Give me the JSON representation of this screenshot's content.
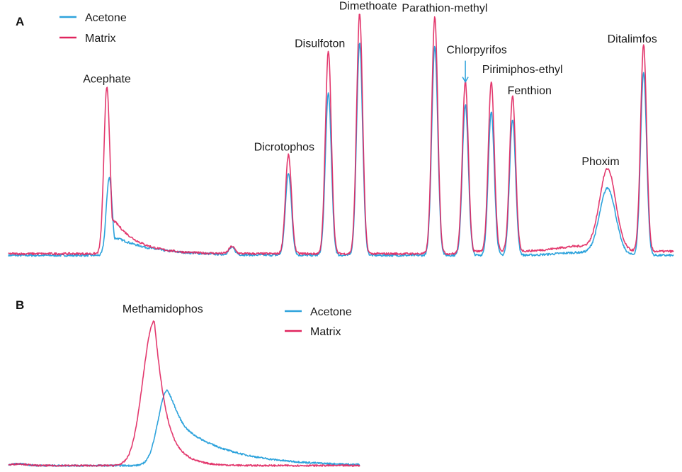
{
  "colors": {
    "acetone": "#2ea3dc",
    "matrix": "#e0245e",
    "overlap": "#6a5fb5",
    "arrow": "#2ea3dc"
  },
  "chart_data": [
    {
      "panel": "A",
      "type": "line",
      "title": "",
      "xlabel": "",
      "ylabel": "",
      "grid": false,
      "legend_position": "top-left",
      "x_range": [
        0,
        100
      ],
      "y_range": [
        0,
        100
      ],
      "series": [
        {
          "name": "Acetone",
          "color": "#2ea3dc"
        },
        {
          "name": "Matrix",
          "color": "#e0245e"
        }
      ],
      "baseline": {
        "Acetone": 0.5,
        "Matrix": 1.2
      },
      "peaks": [
        {
          "label": "Acephate",
          "x": 14.8,
          "width": 0.45,
          "tail": 3.5,
          "Acetone": 33,
          "Matrix": 71,
          "show_label": true
        },
        {
          "label": "",
          "x": 33.6,
          "width": 0.45,
          "tail": 0.3,
          "Acetone": 3,
          "Matrix": 3,
          "show_label": false
        },
        {
          "label": "Dicrotophos",
          "x": 42.1,
          "width": 0.45,
          "tail": 0.3,
          "Acetone": 35,
          "Matrix": 42,
          "show_label": true
        },
        {
          "label": "Disulfoton",
          "x": 48.1,
          "width": 0.45,
          "tail": 0.3,
          "Acetone": 69,
          "Matrix": 86,
          "show_label": true
        },
        {
          "label": "Dimethoate",
          "x": 52.8,
          "width": 0.45,
          "tail": 0.3,
          "Acetone": 90,
          "Matrix": 102,
          "show_label": true
        },
        {
          "label": "Parathion-methyl",
          "x": 64.1,
          "width": 0.45,
          "tail": 0.3,
          "Acetone": 89,
          "Matrix": 101,
          "show_label": true
        },
        {
          "label": "Chlorpyrifos",
          "x": 68.7,
          "width": 0.45,
          "tail": 0.3,
          "Acetone": 64,
          "Matrix": 73,
          "show_label": true,
          "arrow": true
        },
        {
          "label": "Pirimiphos-ethyl",
          "x": 72.6,
          "width": 0.45,
          "tail": 0.3,
          "Acetone": 61,
          "Matrix": 72,
          "show_label": true
        },
        {
          "label": "Fenthion",
          "x": 75.8,
          "width": 0.45,
          "tail": 0.3,
          "Acetone": 58,
          "Matrix": 66,
          "show_label": true
        },
        {
          "label": "Phoxim",
          "x": 90.1,
          "width": 1.2,
          "tail": 0.0,
          "Acetone": 28,
          "Matrix": 34,
          "show_label": true
        },
        {
          "label": "Ditalimfos",
          "x": 95.5,
          "width": 0.45,
          "tail": 0.3,
          "Acetone": 78,
          "Matrix": 88,
          "show_label": true
        }
      ]
    },
    {
      "panel": "B",
      "type": "line",
      "title": "",
      "xlabel": "",
      "ylabel": "",
      "grid": false,
      "legend_position": "top-right",
      "x_range": [
        0,
        100
      ],
      "y_range": [
        0,
        100
      ],
      "series": [
        {
          "name": "Acetone",
          "color": "#2ea3dc"
        },
        {
          "name": "Matrix",
          "color": "#e0245e"
        }
      ],
      "baseline": {
        "Acetone": 1.5,
        "Matrix": 1.5
      },
      "peaks": [
        {
          "label": "Methamidophos",
          "show_label": true,
          "Matrix": {
            "x": 41.5,
            "height": 100,
            "rise": 3.2,
            "tail": 4.0
          },
          "Acetone": {
            "x": 45.2,
            "height": 52,
            "rise": 2.6,
            "tail": 14.0
          }
        }
      ]
    }
  ],
  "legend_a": {
    "items": [
      "Acetone",
      "Matrix"
    ]
  },
  "legend_b": {
    "items": [
      "Acetone",
      "Matrix"
    ]
  },
  "panel_letters": [
    "A",
    "B"
  ]
}
